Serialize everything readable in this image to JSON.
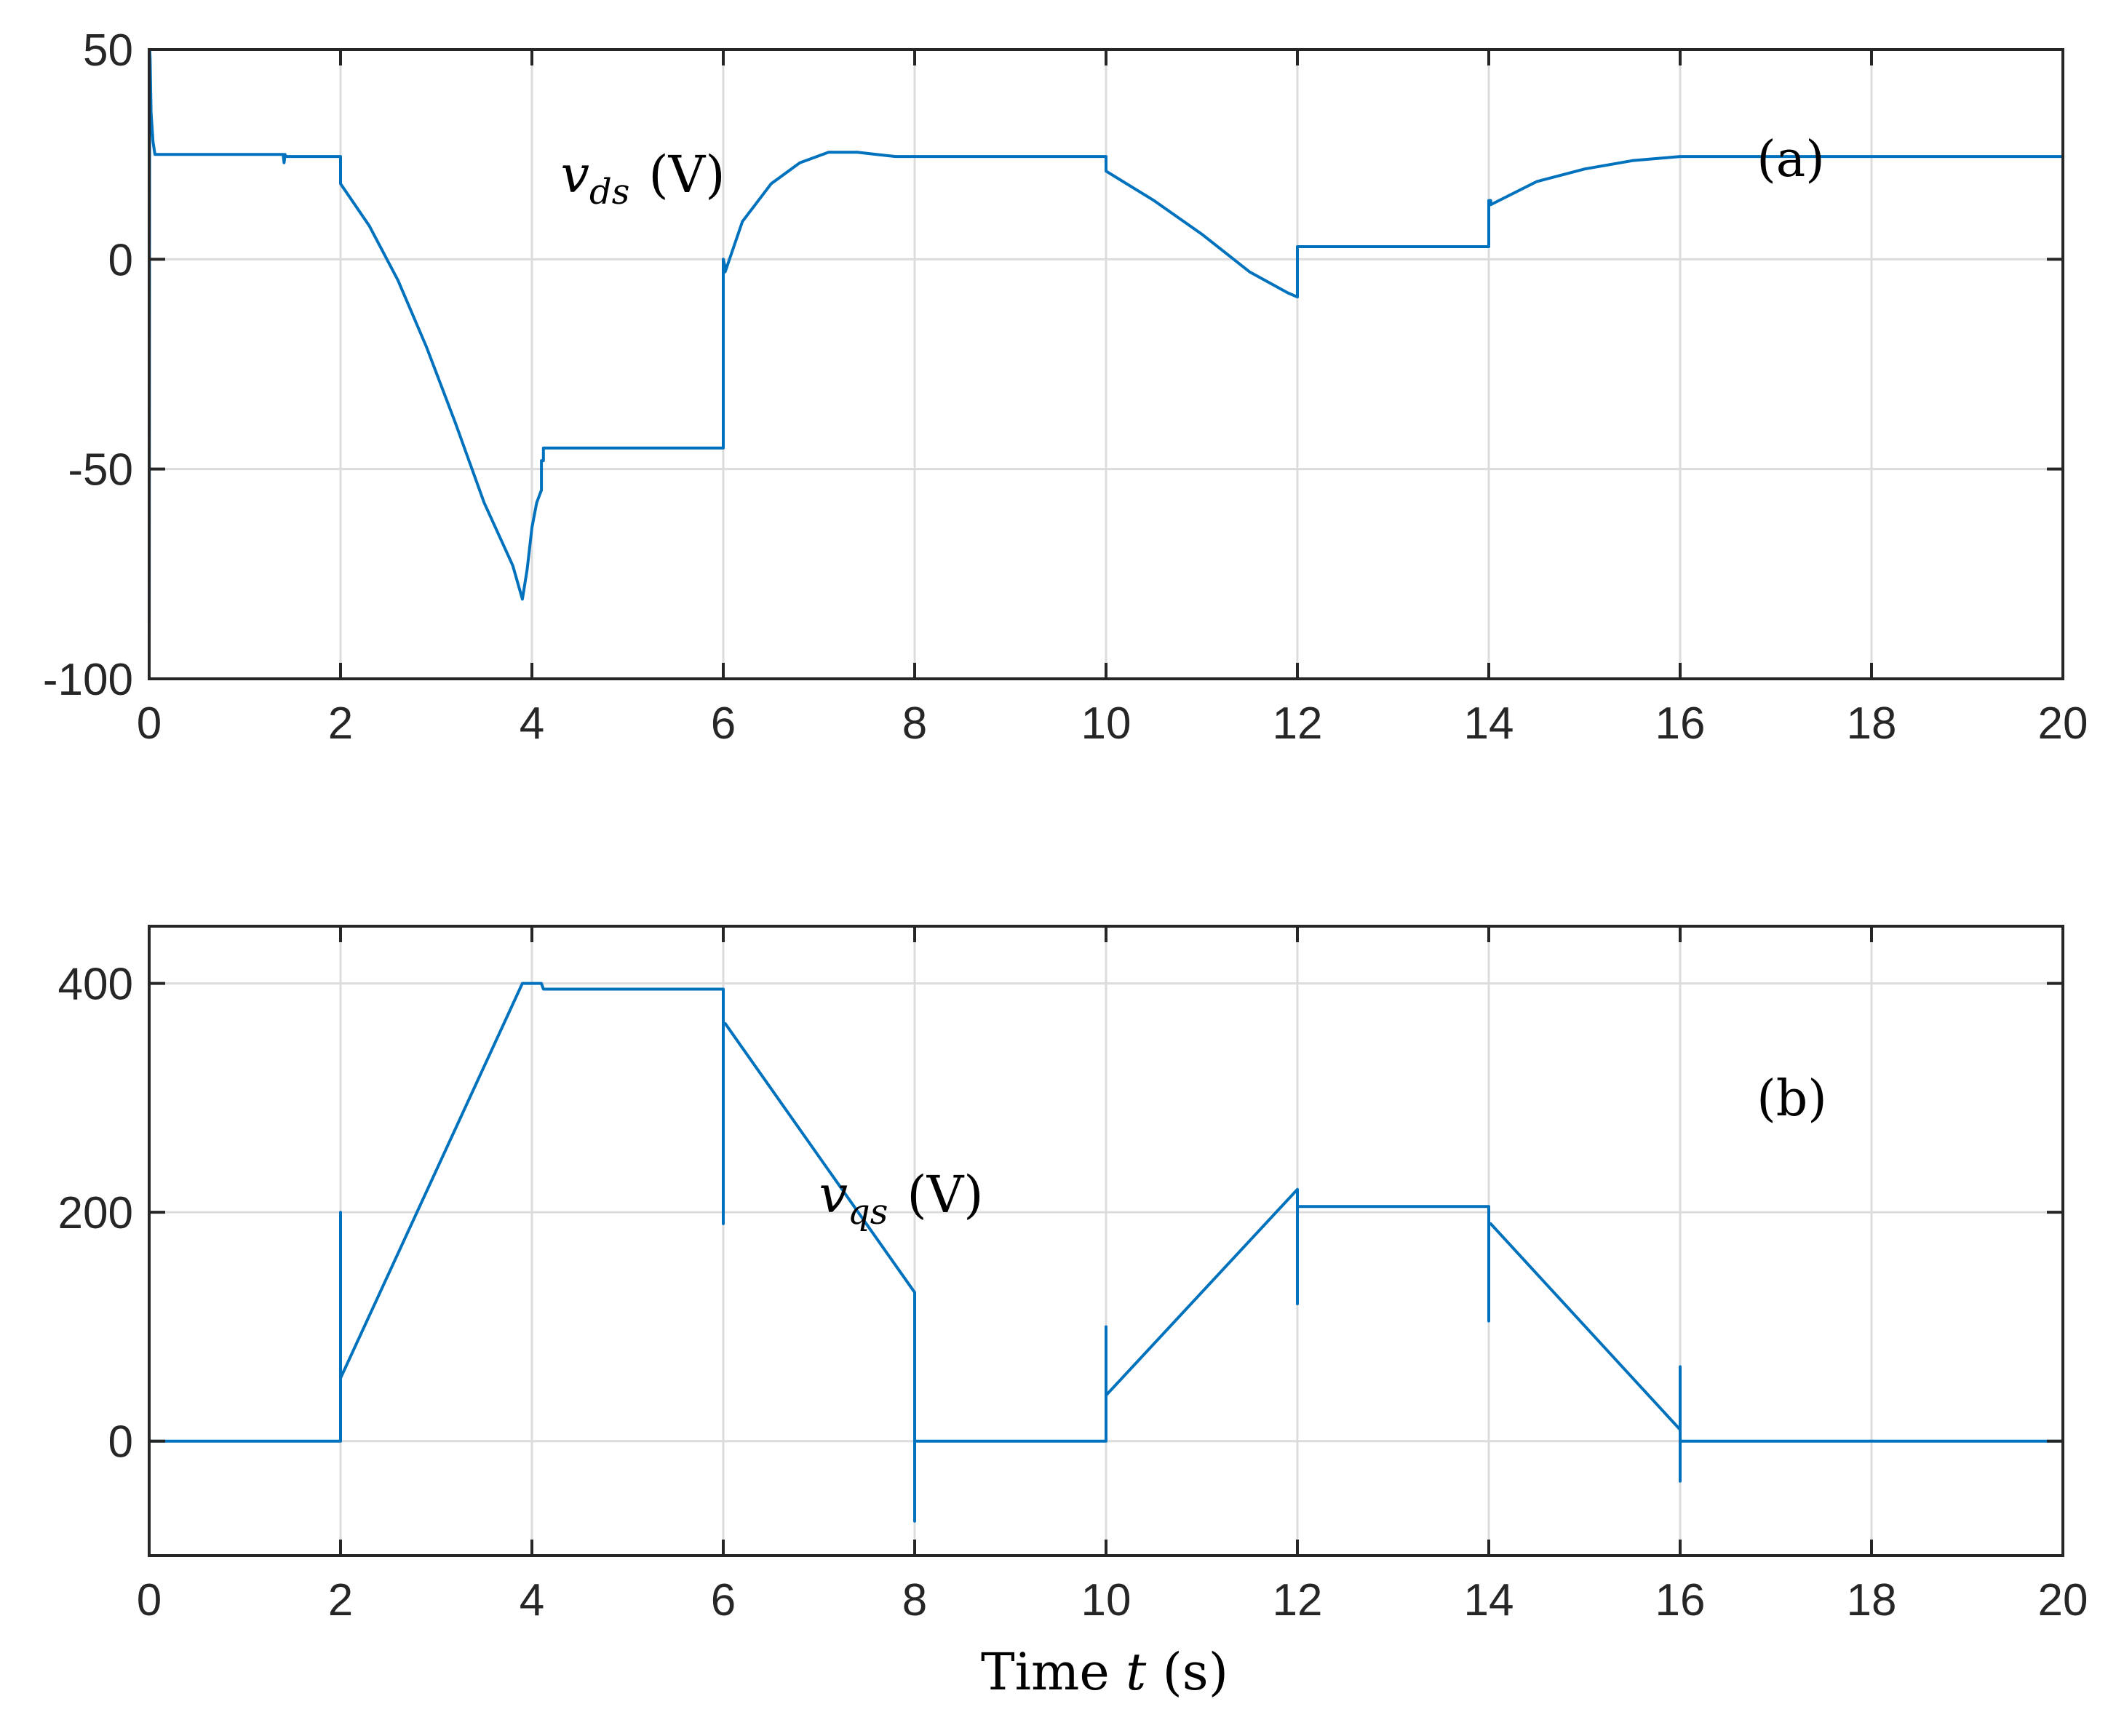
{
  "colors": {
    "series": "#0072bd",
    "axis": "#262626",
    "grid": "#dcdcdc"
  },
  "chart_data": [
    {
      "type": "line",
      "panel_label": "(a)",
      "annotation": {
        "var": "v",
        "sub": "ds",
        "unit": "(V)",
        "at": [
          4.3,
          16
        ]
      },
      "tag_at": [
        16.8,
        24
      ],
      "xlabel": "",
      "ylabel": "",
      "xlim": [
        0,
        20
      ],
      "ylim": [
        -100,
        50
      ],
      "xticks": [
        0,
        2,
        4,
        6,
        8,
        10,
        12,
        14,
        16,
        18,
        20
      ],
      "yticks": [
        -100,
        -50,
        0,
        50
      ],
      "ytick_labels": [
        "-100",
        "-50",
        "0",
        "50"
      ],
      "grid": true,
      "series": [
        {
          "x": [
            0,
            0.005,
            0.01,
            0.02,
            0.04,
            0.06,
            0.1,
            1.4,
            1.41,
            1.42,
            1.43,
            2.0,
            2.0,
            2.3,
            2.6,
            2.9,
            3.2,
            3.5,
            3.8,
            3.9,
            3.95,
            4.0,
            4.05,
            4.1,
            4.1,
            4.12,
            4.12,
            6.0,
            6.0,
            6.0,
            6.02,
            6.02,
            6.2,
            6.5,
            6.8,
            7.1,
            7.4,
            7.6,
            7.8,
            8.0,
            8.0,
            10.0,
            10.0,
            10.5,
            11.0,
            11.5,
            11.9,
            12.0,
            12.0,
            12.02,
            12.02,
            14.0,
            14.0,
            14.02,
            14.02,
            14.5,
            15.0,
            15.5,
            16.0,
            20.0
          ],
          "y": [
            -100,
            50,
            48,
            35,
            28,
            25,
            25,
            25,
            23,
            25,
            24.5,
            24.5,
            18,
            8,
            -5,
            -21,
            -39,
            -58,
            -73,
            -81,
            -74,
            -64,
            -58,
            -55,
            -48,
            -48,
            -45,
            -45,
            -20,
            0,
            -2,
            -3,
            9,
            18,
            23,
            25.5,
            25.5,
            25,
            24.5,
            24.5,
            24.5,
            24.5,
            21,
            14,
            6,
            -3,
            -8,
            -9,
            3,
            3,
            3,
            3,
            14,
            14,
            13,
            18.5,
            21.5,
            23.5,
            24.5,
            24.5
          ]
        }
      ]
    },
    {
      "type": "line",
      "panel_label": "(b)",
      "annotation": {
        "var": "v",
        "sub": "qs",
        "unit": "(V)",
        "at": [
          7.0,
          200
        ]
      },
      "tag_at": [
        16.8,
        300
      ],
      "xlabel": "Time t (s)",
      "ylabel": "",
      "xlim": [
        0,
        20
      ],
      "ylim": [
        -100,
        450
      ],
      "xticks": [
        0,
        2,
        4,
        6,
        8,
        10,
        12,
        14,
        16,
        18,
        20
      ],
      "yticks": [
        0,
        200,
        400
      ],
      "ytick_labels": [
        "0",
        "200",
        "400"
      ],
      "grid": true,
      "series": [
        {
          "x": [
            0,
            0,
            0,
            2.0,
            2.0,
            2.0,
            3.9,
            4.1,
            4.12,
            4.12,
            6.0,
            6.0,
            6.0,
            6.02,
            8.0,
            8.0,
            8.0,
            8.0,
            10.0,
            10.0,
            10.0,
            12.0,
            12.0,
            12.0,
            12.02,
            14.0,
            14.0,
            14.0,
            14.02,
            16.0,
            16.0,
            16.0,
            16.0,
            20.0
          ],
          "y": [
            390,
            0,
            0,
            0,
            200,
            55,
            400,
            400,
            395,
            395,
            395,
            190,
            365,
            365,
            130,
            -70,
            0,
            0,
            0,
            100,
            40,
            220,
            120,
            205,
            205,
            205,
            105,
            190,
            190,
            10,
            65,
            -35,
            0,
            0
          ]
        }
      ]
    }
  ]
}
